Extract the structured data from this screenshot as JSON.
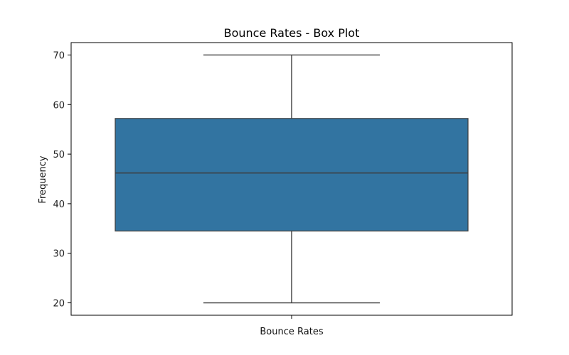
{
  "chart_data": {
    "type": "box",
    "title": "Bounce Rates - Box Plot",
    "xlabel": "Bounce Rates",
    "ylabel": "Frequency",
    "categories": [
      ""
    ],
    "ylim": [
      17.5,
      72.5
    ],
    "yticks": [
      20,
      30,
      40,
      50,
      60,
      70
    ],
    "box": {
      "min": 20,
      "q1": 34.5,
      "median": 46.2,
      "q3": 57.2,
      "max": 70
    },
    "box_color": "#3274a1",
    "line_color": "#3d3d3d",
    "grid": false,
    "legend": false
  }
}
